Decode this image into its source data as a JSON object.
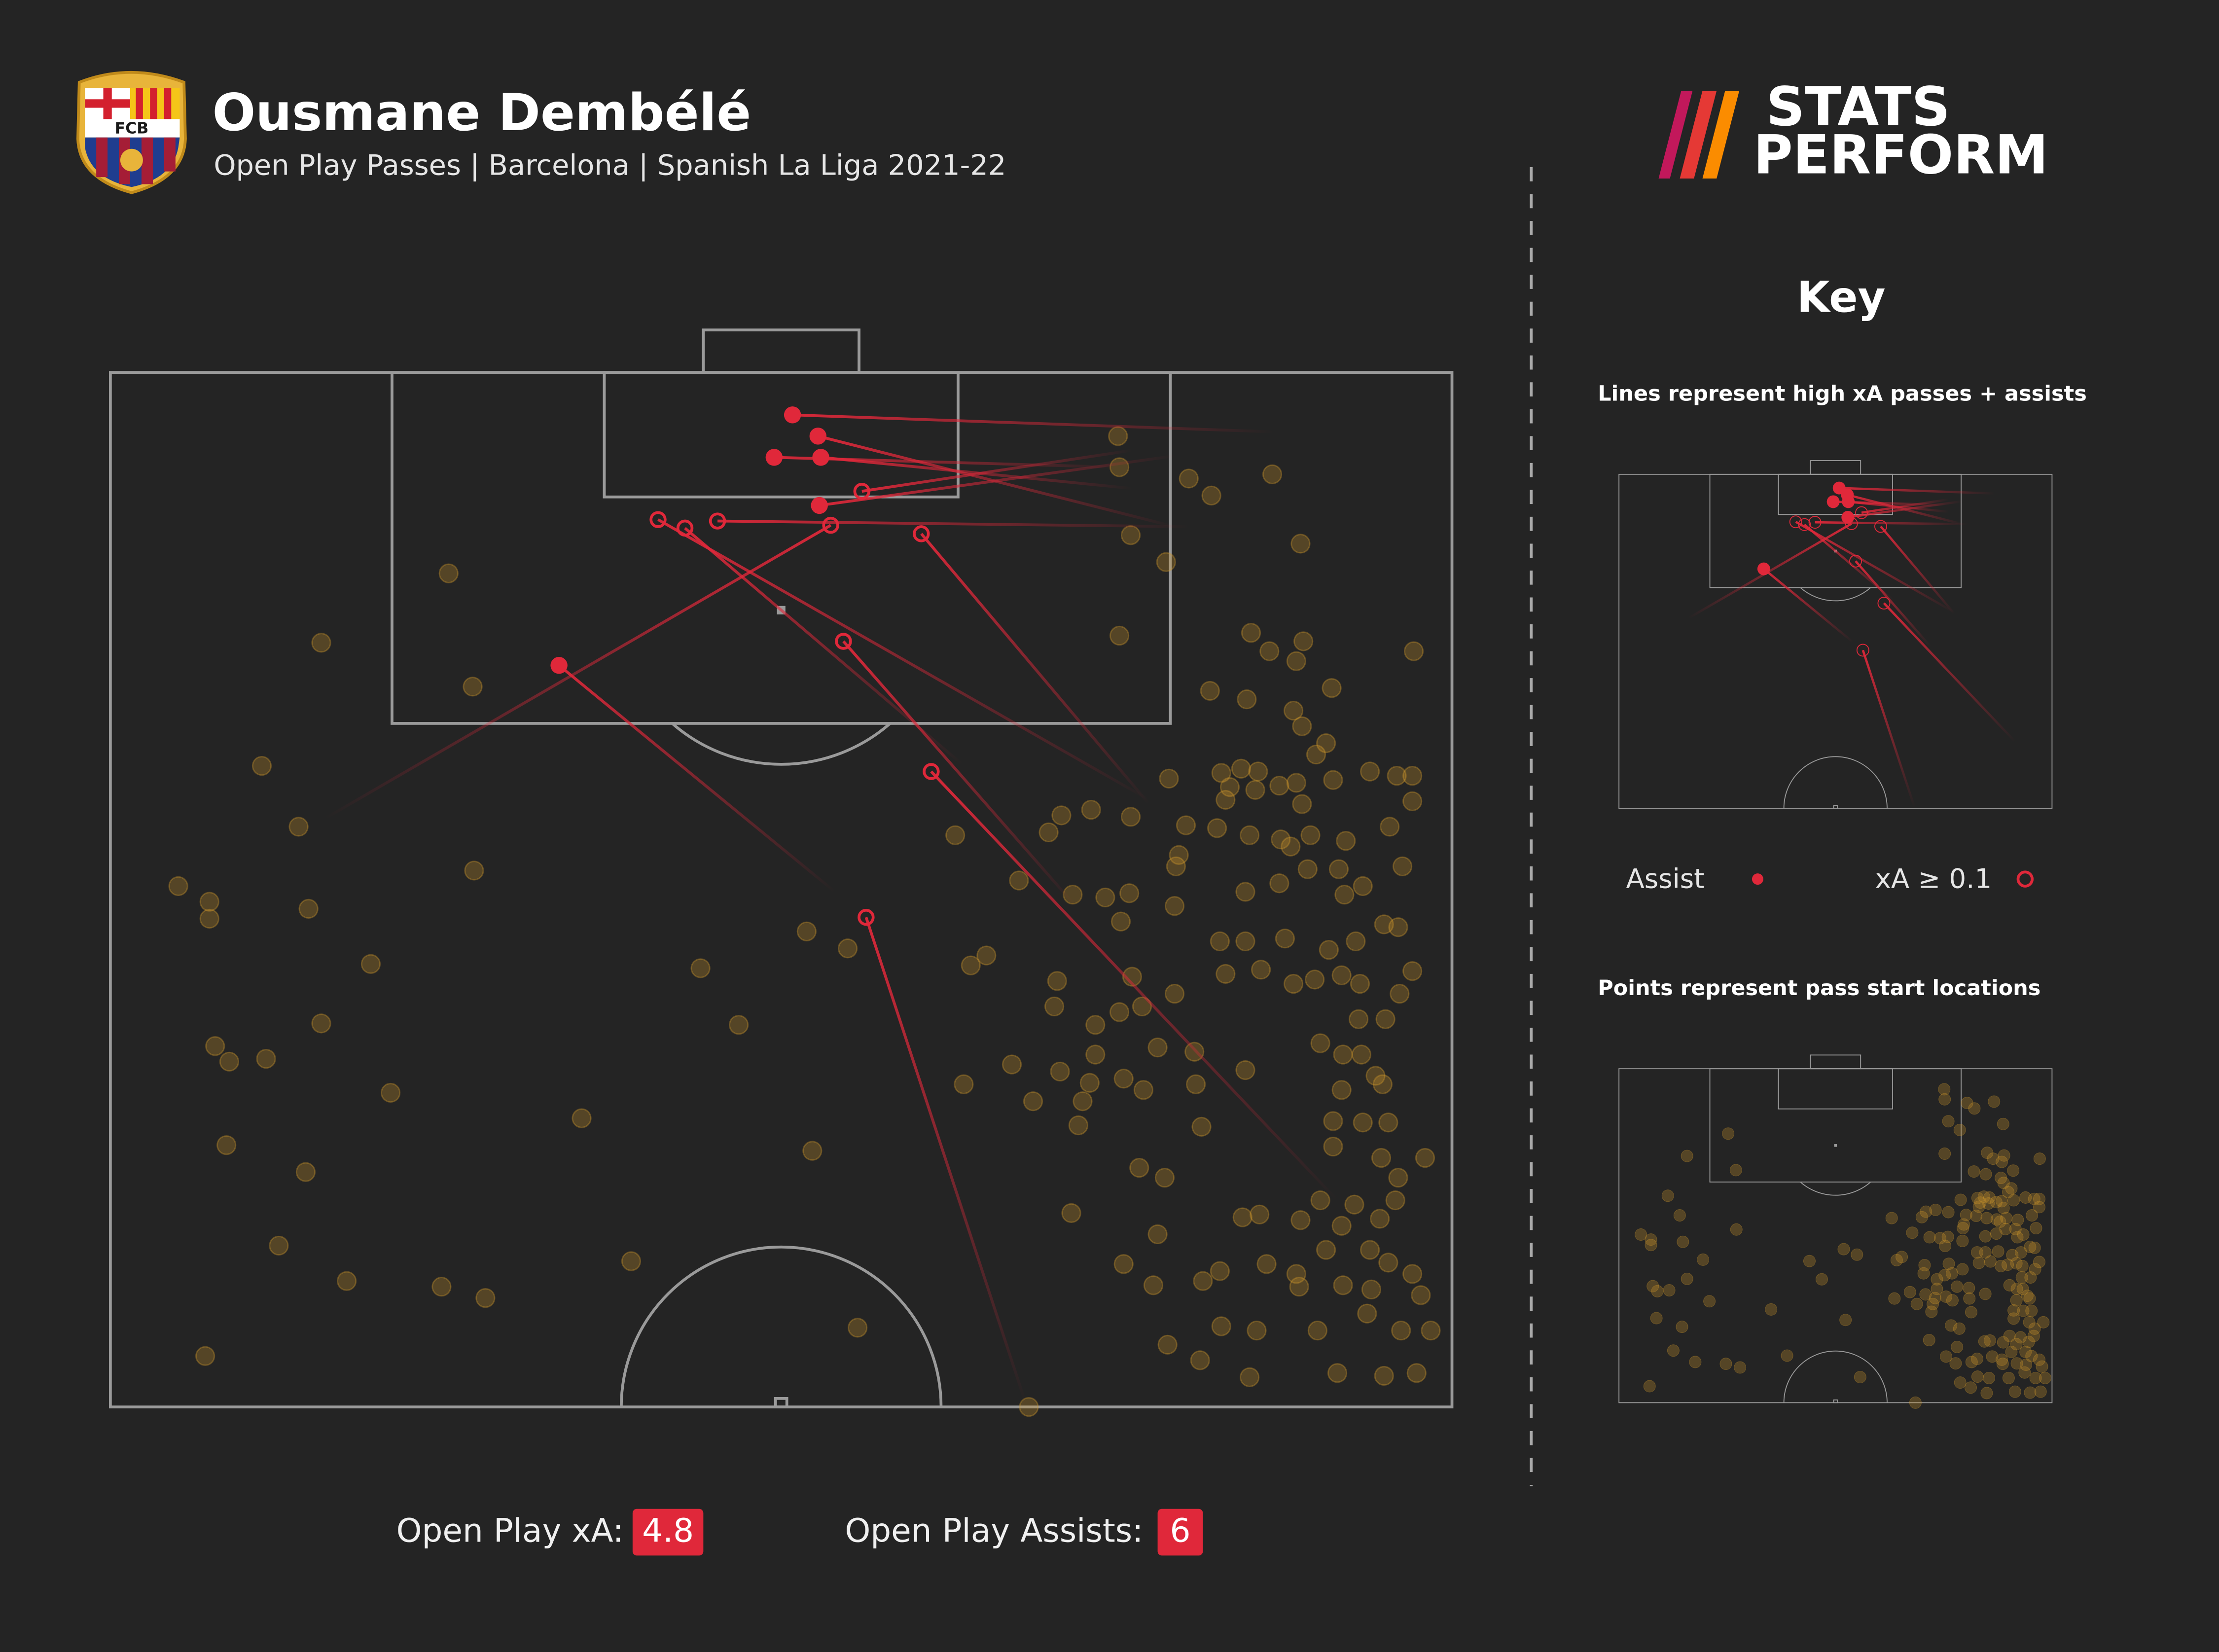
{
  "header": {
    "title": "Ousmane Dembélé",
    "subtitle": "Open Play Passes | Barcelona | Spanish La Liga 2021-22",
    "crest_text": "FCB"
  },
  "brand": {
    "line1": "STATS",
    "line2": "PERFORM"
  },
  "key": {
    "title": "Key",
    "lines_note": "Lines represent high xA passes + assists",
    "assist_label": "Assist",
    "xa_label": "xA ≥ 0.1",
    "points_note": "Points represent pass start locations"
  },
  "stats": [
    {
      "label": "Open Play xA:",
      "value": "4.8"
    },
    {
      "label": "Open Play Assists:",
      "value": "6"
    }
  ]
}
